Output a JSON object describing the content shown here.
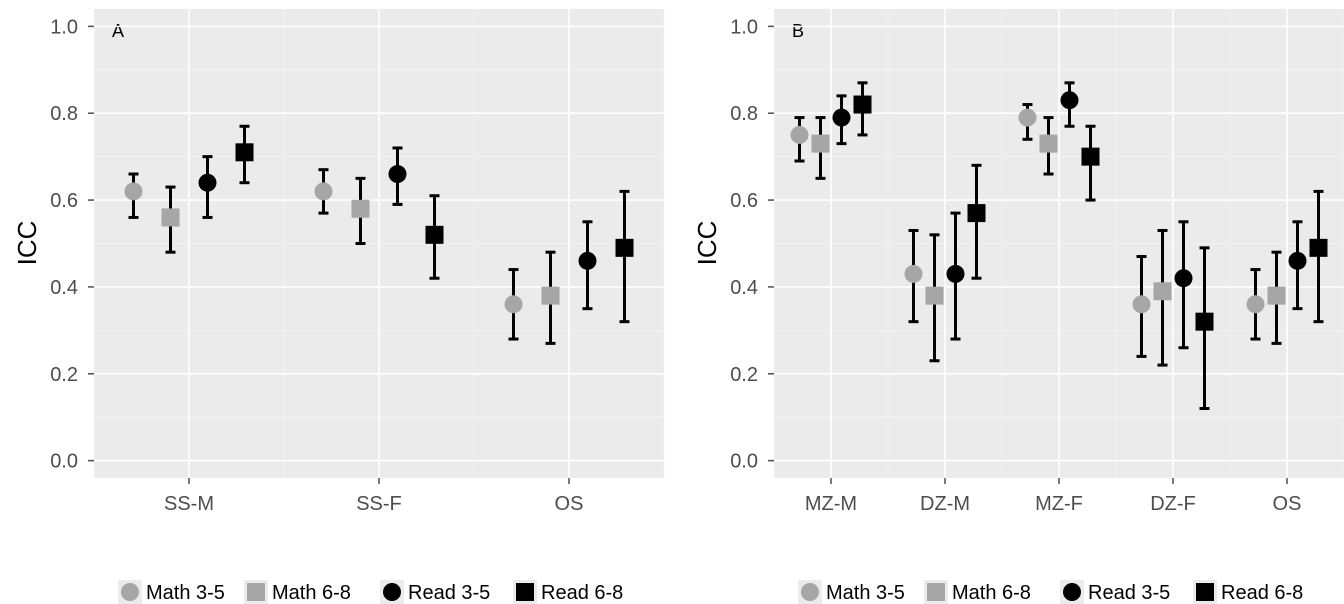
{
  "colors": {
    "math35": "#a6a6a6",
    "math68": "#a6a6a6",
    "read35": "#000000",
    "read68": "#000000",
    "panel": "#ebebeb"
  },
  "legend": {
    "items": [
      {
        "label": "Math 3-5",
        "shape": "circle",
        "color": "#a6a6a6"
      },
      {
        "label": "Math 6-8",
        "shape": "square",
        "color": "#a6a6a6"
      },
      {
        "label": "Read 3-5",
        "shape": "circle",
        "color": "#000000"
      },
      {
        "label": "Read 6-8",
        "shape": "square",
        "color": "#000000"
      }
    ],
    "placement": "bottom"
  },
  "chart_data": [
    {
      "type": "scatter",
      "panel_tag": "A",
      "title": "",
      "xlabel": "",
      "ylabel": "ICC",
      "ylim": [
        -0.04,
        1.04
      ],
      "yticks": [
        "0.0",
        "0.2",
        "0.4",
        "0.6",
        "0.8",
        "1.0"
      ],
      "grid": true,
      "categories": [
        "SS-M",
        "SS-F",
        "OS"
      ],
      "series": [
        {
          "name": "Math 3-5",
          "shape": "circle",
          "color": "#a6a6a6",
          "values": [
            0.62,
            0.62,
            0.36
          ],
          "lower": [
            0.56,
            0.57,
            0.28
          ],
          "upper": [
            0.66,
            0.67,
            0.44
          ]
        },
        {
          "name": "Math 6-8",
          "shape": "square",
          "color": "#a6a6a6",
          "values": [
            0.56,
            0.58,
            0.38
          ],
          "lower": [
            0.48,
            0.5,
            0.27
          ],
          "upper": [
            0.63,
            0.65,
            0.48
          ]
        },
        {
          "name": "Read 3-5",
          "shape": "circle",
          "color": "#000000",
          "values": [
            0.64,
            0.66,
            0.46
          ],
          "lower": [
            0.56,
            0.59,
            0.35
          ],
          "upper": [
            0.7,
            0.72,
            0.55
          ]
        },
        {
          "name": "Read 6-8",
          "shape": "square",
          "color": "#000000",
          "values": [
            0.71,
            0.52,
            0.49
          ],
          "lower": [
            0.64,
            0.42,
            0.32
          ],
          "upper": [
            0.77,
            0.61,
            0.62
          ]
        }
      ]
    },
    {
      "type": "scatter",
      "panel_tag": "B",
      "title": "",
      "xlabel": "",
      "ylabel": "ICC",
      "ylim": [
        -0.04,
        1.04
      ],
      "yticks": [
        "0.0",
        "0.2",
        "0.4",
        "0.6",
        "0.8",
        "1.0"
      ],
      "grid": true,
      "categories": [
        "MZ-M",
        "DZ-M",
        "MZ-F",
        "DZ-F",
        "OS"
      ],
      "series": [
        {
          "name": "Math 3-5",
          "shape": "circle",
          "color": "#a6a6a6",
          "values": [
            0.75,
            0.43,
            0.79,
            0.36,
            0.36
          ],
          "lower": [
            0.69,
            0.32,
            0.74,
            0.24,
            0.28
          ],
          "upper": [
            0.79,
            0.53,
            0.82,
            0.47,
            0.44
          ]
        },
        {
          "name": "Math 6-8",
          "shape": "square",
          "color": "#a6a6a6",
          "values": [
            0.73,
            0.38,
            0.73,
            0.39,
            0.38
          ],
          "lower": [
            0.65,
            0.23,
            0.66,
            0.22,
            0.27
          ],
          "upper": [
            0.79,
            0.52,
            0.79,
            0.53,
            0.48
          ]
        },
        {
          "name": "Read 3-5",
          "shape": "circle",
          "color": "#000000",
          "values": [
            0.79,
            0.43,
            0.83,
            0.42,
            0.46
          ],
          "lower": [
            0.73,
            0.28,
            0.77,
            0.26,
            0.35
          ],
          "upper": [
            0.84,
            0.57,
            0.87,
            0.55,
            0.55
          ]
        },
        {
          "name": "Read 6-8",
          "shape": "square",
          "color": "#000000",
          "values": [
            0.82,
            0.57,
            0.7,
            0.32,
            0.49
          ],
          "lower": [
            0.75,
            0.42,
            0.6,
            0.12,
            0.32
          ],
          "upper": [
            0.87,
            0.68,
            0.77,
            0.49,
            0.62
          ]
        }
      ]
    }
  ]
}
